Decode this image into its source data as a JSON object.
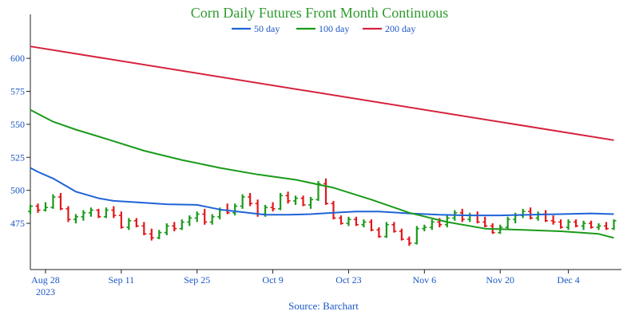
{
  "colors": {
    "title": "#2e9a2e",
    "axis_text": "#1a56c4",
    "ma50": "#1f63d6",
    "ma100": "#1a9a1a",
    "ma200": "#d6223c",
    "bar_up": "#1a9a1a",
    "bar_down": "#e0181b"
  },
  "chart_data": {
    "type": "line",
    "title": "Corn Daily Futures Front Month Continuous",
    "source": "Source: Barchart",
    "ylim": [
      440,
      620
    ],
    "yticks": [
      475,
      500,
      525,
      550,
      575,
      600
    ],
    "xlim": [
      0,
      78
    ],
    "xticks": [
      {
        "i": 2,
        "label": "Aug 28",
        "sub": "2023"
      },
      {
        "i": 12,
        "label": "Sep 11",
        "sub": ""
      },
      {
        "i": 22,
        "label": "Sep 25",
        "sub": ""
      },
      {
        "i": 32,
        "label": "Oct 9",
        "sub": ""
      },
      {
        "i": 42,
        "label": "Oct 23",
        "sub": ""
      },
      {
        "i": 52,
        "label": "Nov 6",
        "sub": ""
      },
      {
        "i": 62,
        "label": "Nov 20",
        "sub": ""
      },
      {
        "i": 71,
        "label": "Dec 4",
        "sub": ""
      }
    ],
    "legend": [
      "50 day",
      "100 day",
      "200 day"
    ],
    "series": [
      {
        "name": "50 day",
        "x": [
          0,
          1,
          3,
          6,
          9,
          11,
          14,
          18,
          22,
          25,
          28,
          31,
          34,
          37,
          40,
          43,
          46,
          50,
          54,
          58,
          62,
          66,
          70,
          74,
          77
        ],
        "values": [
          517,
          514,
          509,
          499,
          494,
          492,
          491,
          489.5,
          489,
          485.5,
          483.5,
          481.5,
          481.5,
          482,
          483,
          484,
          484,
          482.5,
          481.5,
          481,
          481,
          481.5,
          482,
          482.5,
          482
        ]
      },
      {
        "name": "100 day",
        "x": [
          0,
          3,
          6,
          10,
          15,
          20,
          25,
          30,
          35,
          40,
          45,
          50,
          55,
          60,
          65,
          70,
          75,
          77
        ],
        "values": [
          561,
          552,
          546,
          539,
          530,
          523,
          517,
          512,
          508,
          502,
          493,
          483,
          476,
          471,
          470,
          469,
          467,
          464
        ]
      },
      {
        "name": "200 day",
        "x": [
          0,
          77
        ],
        "values": [
          609,
          538
        ]
      }
    ],
    "ohlc": [
      [
        0,
        484,
        489,
        482,
        488
      ],
      [
        1,
        488,
        490,
        483,
        485
      ],
      [
        2,
        485,
        491,
        484,
        487
      ],
      [
        3,
        487,
        497,
        486,
        495
      ],
      [
        4,
        495,
        498,
        485,
        486
      ],
      [
        5,
        486,
        488,
        476,
        478
      ],
      [
        6,
        478,
        482,
        475,
        480
      ],
      [
        7,
        480,
        485,
        477,
        483
      ],
      [
        8,
        483,
        487,
        480,
        485
      ],
      [
        9,
        485,
        486,
        479,
        480
      ],
      [
        10,
        480,
        487,
        479,
        485
      ],
      [
        11,
        485,
        488,
        479,
        481
      ],
      [
        12,
        481,
        484,
        471,
        472
      ],
      [
        13,
        472,
        479,
        470,
        477
      ],
      [
        14,
        477,
        479,
        472,
        473
      ],
      [
        15,
        473,
        476,
        466,
        467
      ],
      [
        16,
        467,
        471,
        462,
        464
      ],
      [
        17,
        464,
        470,
        463,
        468
      ],
      [
        18,
        468,
        475,
        466,
        473
      ],
      [
        19,
        473,
        476,
        469,
        471
      ],
      [
        20,
        471,
        478,
        470,
        476
      ],
      [
        21,
        476,
        481,
        473,
        479
      ],
      [
        22,
        479,
        484,
        476,
        482
      ],
      [
        23,
        482,
        486,
        474,
        476
      ],
      [
        24,
        476,
        482,
        474,
        480
      ],
      [
        25,
        480,
        487,
        478,
        485
      ],
      [
        26,
        485,
        490,
        482,
        483
      ],
      [
        27,
        483,
        490,
        481,
        488
      ],
      [
        28,
        488,
        497,
        486,
        495
      ],
      [
        29,
        495,
        498,
        488,
        490
      ],
      [
        30,
        490,
        493,
        480,
        482
      ],
      [
        31,
        482,
        489,
        480,
        487
      ],
      [
        32,
        487,
        491,
        484,
        486
      ],
      [
        33,
        486,
        498,
        485,
        496
      ],
      [
        34,
        496,
        499,
        490,
        492
      ],
      [
        35,
        492,
        496,
        489,
        494
      ],
      [
        36,
        494,
        496,
        488,
        489
      ],
      [
        37,
        489,
        495,
        486,
        493
      ],
      [
        38,
        493,
        507,
        492,
        505
      ],
      [
        39,
        505,
        509,
        489,
        490
      ],
      [
        40,
        490,
        492,
        478,
        479
      ],
      [
        41,
        479,
        481,
        474,
        475
      ],
      [
        42,
        475,
        480,
        473,
        478
      ],
      [
        43,
        478,
        480,
        473,
        474
      ],
      [
        44,
        474,
        478,
        472,
        476
      ],
      [
        45,
        476,
        478,
        469,
        470
      ],
      [
        46,
        470,
        472,
        464,
        465
      ],
      [
        47,
        465,
        476,
        464,
        474
      ],
      [
        48,
        474,
        476,
        468,
        469
      ],
      [
        49,
        469,
        471,
        462,
        463
      ],
      [
        50,
        463,
        465,
        458,
        460
      ],
      [
        51,
        460,
        473,
        459,
        471
      ],
      [
        52,
        471,
        474,
        469,
        472
      ],
      [
        53,
        472,
        478,
        470,
        476
      ],
      [
        54,
        476,
        479,
        472,
        474
      ],
      [
        55,
        474,
        481,
        472,
        479
      ],
      [
        56,
        479,
        485,
        477,
        483
      ],
      [
        57,
        483,
        486,
        476,
        478
      ],
      [
        58,
        478,
        483,
        476,
        481
      ],
      [
        59,
        481,
        484,
        475,
        476
      ],
      [
        60,
        476,
        480,
        472,
        473
      ],
      [
        61,
        473,
        475,
        467,
        468
      ],
      [
        62,
        468,
        474,
        467,
        472
      ],
      [
        63,
        472,
        480,
        470,
        478
      ],
      [
        64,
        478,
        483,
        475,
        481
      ],
      [
        65,
        481,
        486,
        479,
        484
      ],
      [
        66,
        484,
        487,
        478,
        479
      ],
      [
        67,
        479,
        484,
        477,
        482
      ],
      [
        68,
        482,
        485,
        476,
        477
      ],
      [
        69,
        477,
        481,
        474,
        476
      ],
      [
        70,
        476,
        478,
        471,
        472
      ],
      [
        71,
        472,
        478,
        470,
        476
      ],
      [
        72,
        476,
        478,
        472,
        473
      ],
      [
        73,
        473,
        477,
        470,
        475
      ],
      [
        74,
        475,
        477,
        471,
        472
      ],
      [
        75,
        472,
        475,
        470,
        473
      ],
      [
        76,
        473,
        476,
        470,
        471
      ],
      [
        77,
        471,
        478,
        470,
        477
      ]
    ]
  }
}
